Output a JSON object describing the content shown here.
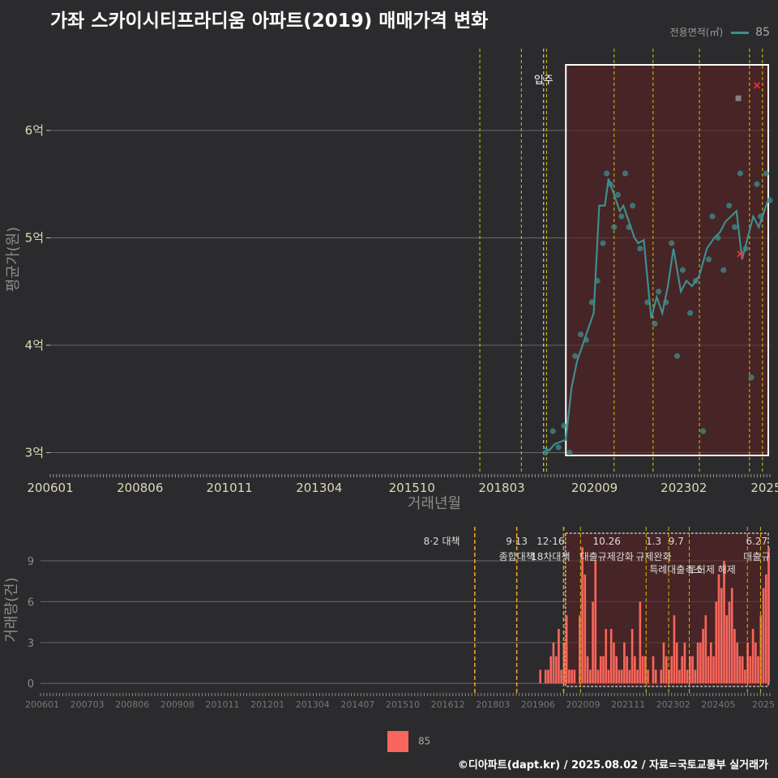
{
  "title": "가좌 스카이시티프라디움 아파트(2019) 매매가격 변화",
  "legend_top": {
    "label": "전용면적(㎡)",
    "series": "85",
    "color": "#3e8e8e"
  },
  "legend_bottom": {
    "series": "85",
    "color": "#f8665d"
  },
  "footer": "©디아파트(dapt.kr) / 2025.08.02 / 자료=국토교통부 실거래가",
  "chart_data": [
    {
      "type": "line",
      "title": "가좌 스카이시티프라디움 아파트(2019) 매매가격 변화",
      "xlabel": "거래년월",
      "ylabel": "평균가(원)",
      "ylim": [
        2.8,
        6.8
      ],
      "y_ticks": [
        {
          "v": 3,
          "label": "3억"
        },
        {
          "v": 4,
          "label": "4억"
        },
        {
          "v": 5,
          "label": "5억"
        },
        {
          "v": 6,
          "label": "6억"
        }
      ],
      "x_ticks": [
        "200601",
        "200806",
        "201011",
        "201304",
        "201510",
        "201803",
        "202009",
        "202302",
        "2025"
      ],
      "vlines": [
        2017.58,
        2018.7,
        2019.3,
        2019.38,
        2021.2,
        2022.25,
        2023.5,
        2024.85,
        2025.2
      ],
      "annotation": "입주",
      "highlight_range_start": 2019.9,
      "series": [
        {
          "name": "85",
          "x": [
            2019.3,
            2019.45,
            2019.6,
            2019.75,
            2019.9,
            2020.05,
            2020.2,
            2020.35,
            2020.5,
            2020.65,
            2020.8,
            2020.95,
            2021.05,
            2021.15,
            2021.25,
            2021.35,
            2021.45,
            2021.55,
            2021.65,
            2021.75,
            2021.85,
            2022.0,
            2022.2,
            2022.35,
            2022.5,
            2022.65,
            2022.8,
            2023.0,
            2023.15,
            2023.3,
            2023.5,
            2023.7,
            2023.9,
            2024.05,
            2024.2,
            2024.35,
            2024.5,
            2024.65,
            2024.8,
            2024.95,
            2025.1,
            2025.25,
            2025.35
          ],
          "y": [
            3.05,
            3.02,
            3.08,
            3.1,
            3.12,
            3.6,
            3.85,
            4.0,
            4.15,
            4.3,
            5.3,
            5.3,
            5.55,
            5.45,
            5.35,
            5.25,
            5.3,
            5.2,
            5.1,
            5.0,
            4.95,
            4.98,
            4.25,
            4.45,
            4.3,
            4.55,
            4.9,
            4.5,
            4.6,
            4.55,
            4.65,
            4.9,
            5.0,
            5.05,
            5.15,
            5.2,
            5.25,
            4.8,
            5.0,
            5.2,
            5.1,
            5.25,
            5.35
          ]
        }
      ],
      "scatter_x": [
        2019.35,
        2019.55,
        2019.7,
        2019.85,
        2020.0,
        2020.15,
        2020.3,
        2020.45,
        2020.6,
        2020.75,
        2020.9,
        2021.0,
        2021.1,
        2021.2,
        2021.3,
        2021.4,
        2021.5,
        2021.6,
        2021.7,
        2021.9,
        2022.1,
        2022.3,
        2022.4,
        2022.6,
        2022.75,
        2022.9,
        2023.05,
        2023.25,
        2023.4,
        2023.6,
        2023.75,
        2023.85,
        2024.0,
        2024.15,
        2024.3,
        2024.45,
        2024.6,
        2024.75,
        2024.9,
        2025.05,
        2025.15,
        2025.3,
        2025.4
      ],
      "scatter_y": [
        3.0,
        3.2,
        3.05,
        3.25,
        3.0,
        3.9,
        4.1,
        4.05,
        4.4,
        4.6,
        4.95,
        5.6,
        5.5,
        5.1,
        5.4,
        5.2,
        5.6,
        5.1,
        5.3,
        4.9,
        4.4,
        4.2,
        4.5,
        4.4,
        4.95,
        3.9,
        4.7,
        4.3,
        4.6,
        3.2,
        4.8,
        5.2,
        5.0,
        4.7,
        5.3,
        5.1,
        5.6,
        4.9,
        3.7,
        5.5,
        5.2,
        5.6,
        5.35
      ],
      "special_points": [
        {
          "x": 2024.55,
          "y": 6.3,
          "color": "#808080"
        },
        {
          "x": 2025.05,
          "y": 6.42,
          "color": "#ff3030"
        },
        {
          "x": 2024.6,
          "y": 4.85,
          "color": "#ff3030"
        }
      ]
    },
    {
      "type": "bar",
      "ylabel": "거래량(건)",
      "ylim": [
        -0.7,
        11.5
      ],
      "y_ticks": [
        0,
        3,
        6,
        9
      ],
      "x_ticks": [
        "200601",
        "200703",
        "200806",
        "200908",
        "201011",
        "201201",
        "201304",
        "201407",
        "201510",
        "201612",
        "201803",
        "201906",
        "202009",
        "202111",
        "202302",
        "202405",
        "2025"
      ],
      "vlines": [
        2017.58,
        2018.7,
        2019.95,
        2020.4,
        2022.15,
        2022.75,
        2023.3,
        2024.85,
        2025.2
      ],
      "events": [
        {
          "line1": "8·2 대책",
          "line2": ""
        },
        {
          "line1": "9·13",
          "line2": "종합대책"
        },
        {
          "line1": "12·16",
          "line2": "18차대책"
        },
        {
          "line1": "10.26",
          "line2": "대출규제강화"
        },
        {
          "line1": "1.3",
          "line2": "규제완화"
        },
        {
          "line1": "9.7",
          "line2": "특례대출축소"
        },
        {
          "line1": "",
          "line2": "토허제 해제"
        },
        {
          "line1": "6.27",
          "line2": "대출규"
        }
      ],
      "highlight_range_start": 2020.0,
      "values": [
        1,
        0,
        1,
        1,
        2,
        3,
        2,
        4,
        1,
        3,
        5,
        1,
        1,
        1,
        0,
        5,
        10,
        8,
        2,
        1,
        6,
        9,
        1,
        2,
        2,
        4,
        1,
        4,
        3,
        2,
        1,
        1,
        3,
        2,
        1,
        4,
        2,
        1,
        6,
        2,
        2,
        1,
        0,
        2,
        1,
        0,
        1,
        3,
        2,
        1,
        2,
        5,
        3,
        1,
        2,
        3,
        1,
        2,
        2,
        1,
        3,
        3,
        4,
        5,
        2,
        3,
        2,
        6,
        8,
        7,
        9,
        5,
        6,
        7,
        4,
        3,
        2,
        2,
        1,
        3,
        2,
        4,
        3,
        2,
        5,
        7,
        8,
        10
      ],
      "value_x_start": 2019.3,
      "value_x_step": 0.07
    }
  ]
}
